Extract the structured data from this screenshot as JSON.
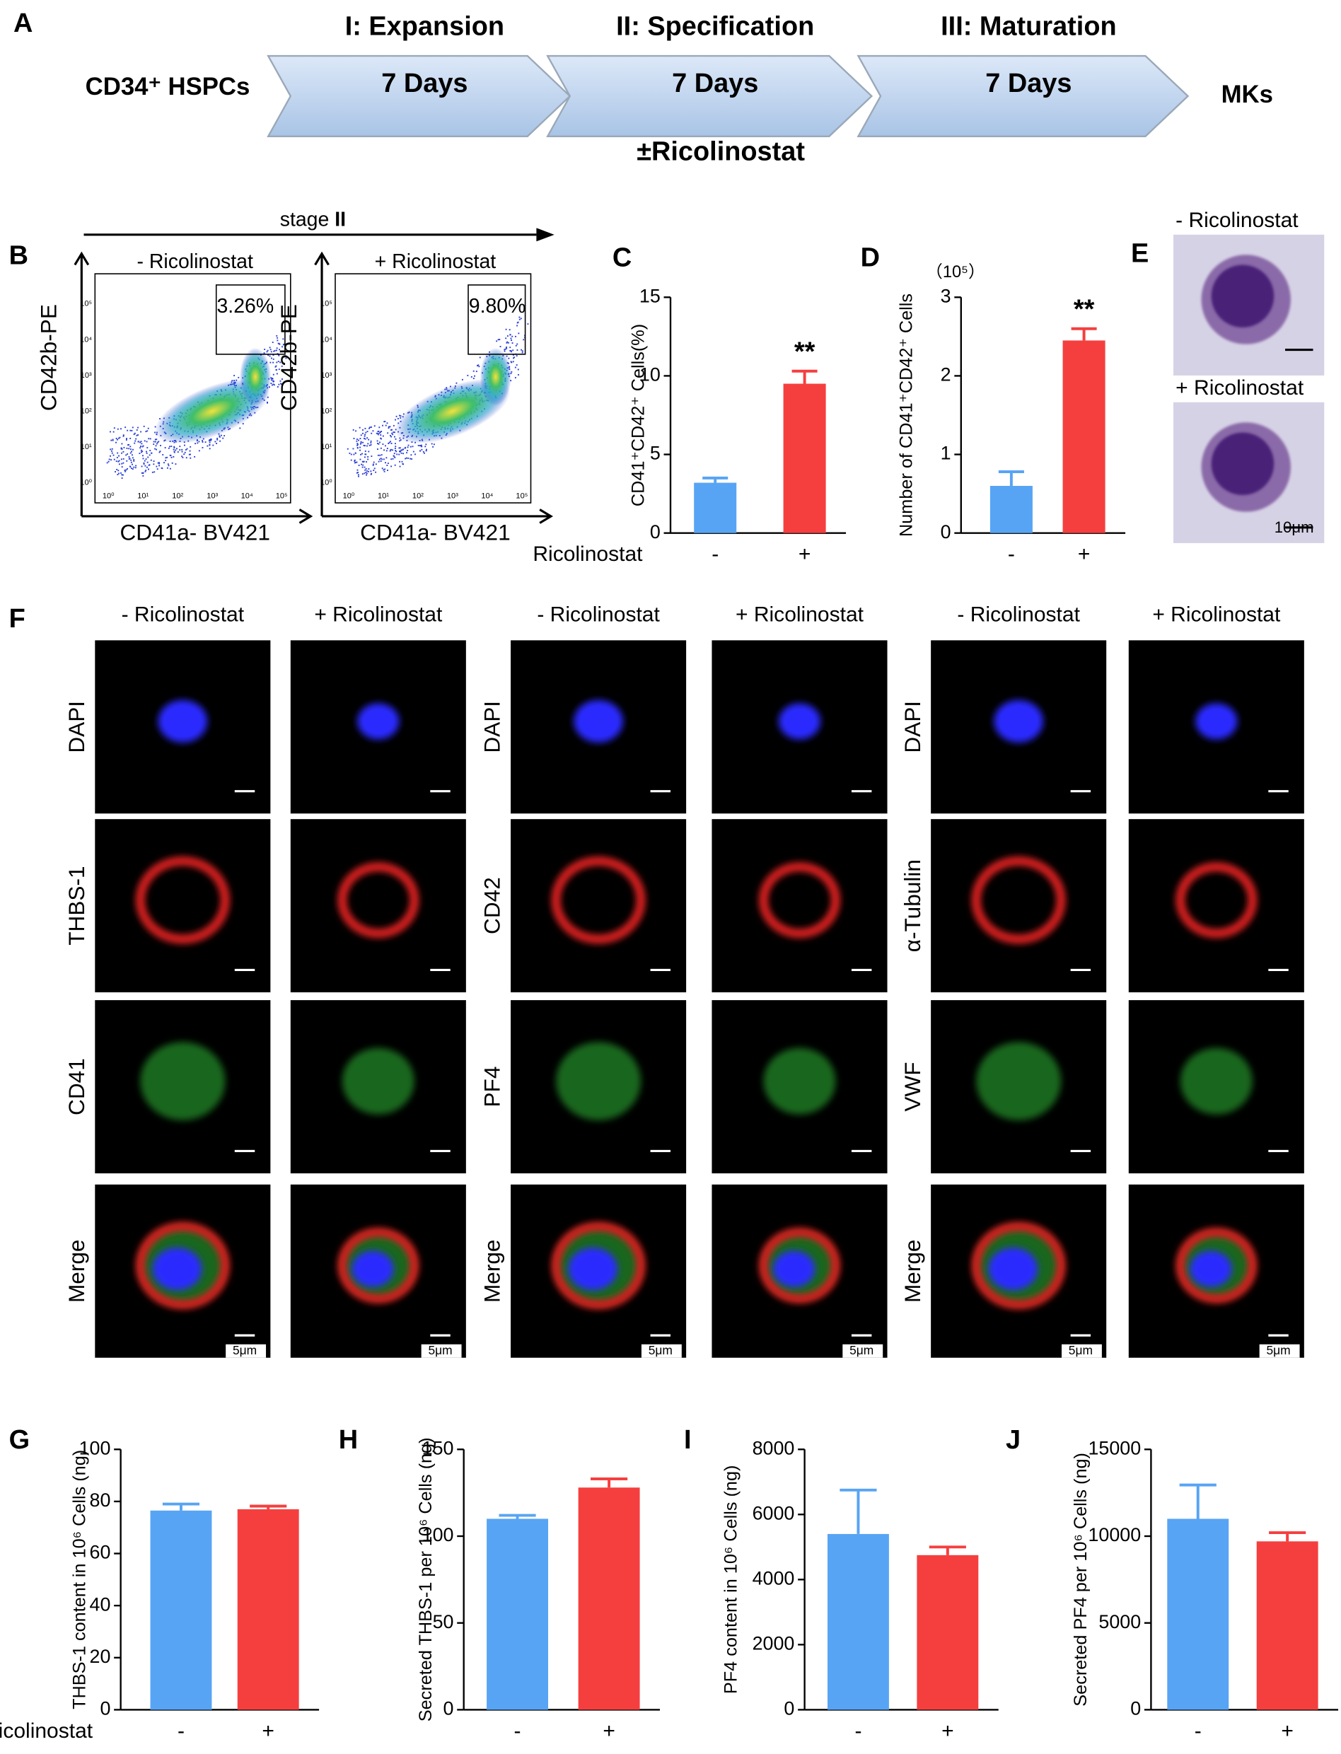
{
  "panel_a": {
    "label": "A",
    "start": "CD34⁺ HSPCs",
    "end": "MKs",
    "stages": [
      {
        "title": "I: Expansion",
        "duration": "7 Days"
      },
      {
        "title": "II: Specification",
        "duration": "7 Days"
      },
      {
        "title": "III: Maturation",
        "duration": "7 Days"
      }
    ],
    "treatment": "±Ricolinostat"
  },
  "panel_b": {
    "label": "B",
    "stage_text": "stage",
    "stage_number": "II",
    "plots": [
      {
        "title": "- Ricolinostat",
        "gate": "3.26%"
      },
      {
        "title": "+ Ricolinostat",
        "gate": "9.80%"
      }
    ],
    "y_axis_label": "CD42b-PE",
    "x_axis_label": "CD41a- BV421",
    "log_ticks": [
      "10⁰",
      "10¹",
      "10²",
      "10³",
      "10⁴",
      "10⁵"
    ]
  },
  "panel_e": {
    "label": "E",
    "images": [
      {
        "title": "- Ricolinostat"
      },
      {
        "title": "+ Ricolinostat"
      }
    ],
    "scale_bar": "10μm"
  },
  "panel_f": {
    "label": "F",
    "columns": [
      "- Ricolinostat",
      "+ Ricolinostat",
      "- Ricolinostat",
      "+ Ricolinostat",
      "- Ricolinostat",
      "+ Ricolinostat"
    ],
    "groups": [
      {
        "rows": [
          "DAPI",
          "THBS-1",
          "CD41",
          "Merge"
        ]
      },
      {
        "rows": [
          "DAPI",
          "CD42",
          "PF4",
          "Merge"
        ]
      },
      {
        "rows": [
          "DAPI",
          "α-Tubulin",
          "VWF",
          "Merge"
        ]
      }
    ],
    "scale_bar": "5μm"
  },
  "chart_data": [
    {
      "type": "bar",
      "panel": "C",
      "ylabel": "CD41⁺CD42⁺ Cells(%)",
      "xlabel": "Ricolinostat",
      "categories": [
        "-",
        "+"
      ],
      "values": [
        3.2,
        9.5
      ],
      "errors": [
        0.3,
        0.8
      ],
      "colors": [
        "#58a4f4",
        "#f53f3f"
      ],
      "ylim": [
        0,
        15
      ],
      "yticks": [
        0,
        5,
        10,
        15
      ],
      "significance": "**"
    },
    {
      "type": "bar",
      "panel": "D",
      "ylabel": "Number of CD41⁺CD42⁺ Cells",
      "unit": "（10⁵）",
      "categories": [
        "-",
        "+"
      ],
      "values": [
        0.6,
        2.45
      ],
      "errors": [
        0.18,
        0.15
      ],
      "colors": [
        "#58a4f4",
        "#f53f3f"
      ],
      "ylim": [
        0,
        3
      ],
      "yticks": [
        0,
        1,
        2,
        3
      ],
      "significance": "**"
    },
    {
      "type": "bar",
      "panel": "G",
      "ylabel": "THBS-1 content in 10⁶ Cells (ng)",
      "xlabel": "Ricolinostat",
      "categories": [
        "-",
        "+"
      ],
      "values": [
        76.5,
        77
      ],
      "errors": [
        2.5,
        1.2
      ],
      "colors": [
        "#58a4f4",
        "#f53f3f"
      ],
      "ylim": [
        0,
        100
      ],
      "yticks": [
        0,
        20,
        40,
        60,
        80,
        100
      ]
    },
    {
      "type": "bar",
      "panel": "H",
      "ylabel": "Secreted THBS-1 per 10⁶ Cells (ng)",
      "categories": [
        "-",
        "+"
      ],
      "values": [
        110,
        128
      ],
      "errors": [
        2,
        5
      ],
      "colors": [
        "#58a4f4",
        "#f53f3f"
      ],
      "ylim": [
        0,
        150
      ],
      "yticks": [
        0,
        50,
        100,
        150
      ]
    },
    {
      "type": "bar",
      "panel": "I",
      "ylabel": "PF4 content in 10⁶ Cells (ng)",
      "categories": [
        "-",
        "+"
      ],
      "values": [
        5400,
        4750
      ],
      "errors": [
        1350,
        250
      ],
      "colors": [
        "#58a4f4",
        "#f53f3f"
      ],
      "ylim": [
        0,
        8000
      ],
      "yticks": [
        0,
        2000,
        4000,
        6000,
        8000
      ]
    },
    {
      "type": "bar",
      "panel": "J",
      "ylabel": "Secreted PF4  per 10⁶ Cells (ng)",
      "categories": [
        "-",
        "+"
      ],
      "values": [
        11000,
        9700
      ],
      "errors": [
        1950,
        500
      ],
      "colors": [
        "#58a4f4",
        "#f53f3f"
      ],
      "ylim": [
        0,
        15000
      ],
      "yticks": [
        0,
        5000,
        10000,
        15000
      ]
    }
  ]
}
